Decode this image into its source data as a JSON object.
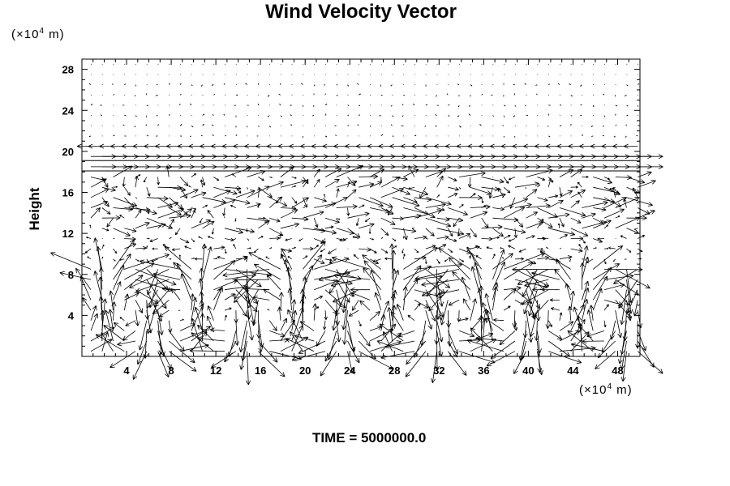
{
  "chart_data": {
    "type": "vector-field",
    "title": "Wind Velocity Vector",
    "ylabel": "Height",
    "xlabel": "",
    "y_unit_prefix": "(×10",
    "y_unit_exp": "4",
    "y_unit_suffix": " m)",
    "x_unit_prefix": "(×10",
    "x_unit_exp": "4",
    "x_unit_suffix": " m)",
    "xlim": [
      0,
      50
    ],
    "ylim": [
      0,
      29
    ],
    "x_ticks_labeled": [
      4,
      8,
      12,
      16,
      20,
      24,
      28,
      32,
      36,
      40,
      44,
      48
    ],
    "y_ticks_labeled": [
      4,
      8,
      12,
      16,
      20,
      24,
      28
    ],
    "grid_spacing": {
      "x": 1,
      "y": 1
    },
    "reference_lines_y": [
      18.1,
      19.1
    ],
    "annotation": "TIME = 5000000.0",
    "legend": "none",
    "grid": false
  }
}
